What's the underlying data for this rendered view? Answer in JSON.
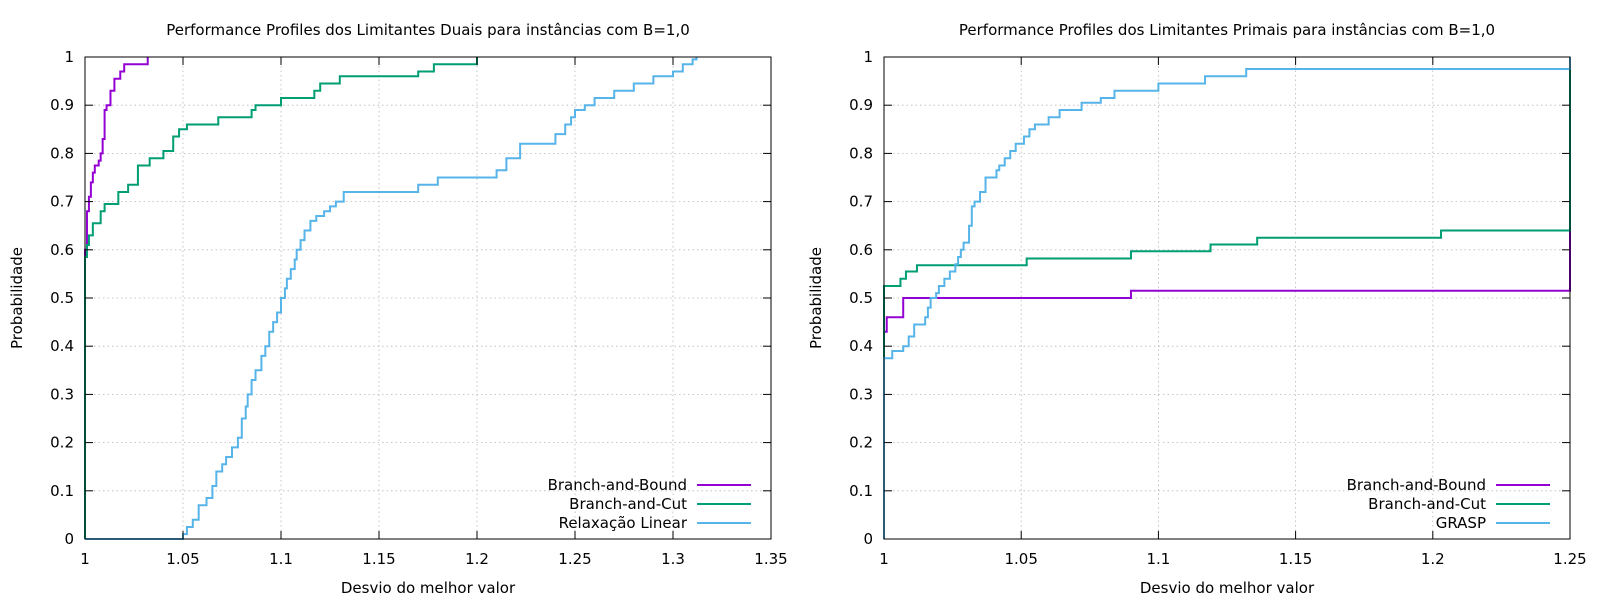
{
  "chart_data": [
    {
      "type": "line",
      "title": "Performance Profiles dos Limitantes Duais para instâncias com B=1,0",
      "xlabel": "Desvio do melhor valor",
      "ylabel": "Probabilidade",
      "xlim": [
        1,
        1.35
      ],
      "ylim": [
        0,
        1
      ],
      "x_ticks": [
        {
          "value": 1,
          "label": "1"
        },
        {
          "value": 1.05,
          "label": "1.05"
        },
        {
          "value": 1.1,
          "label": "1.1"
        },
        {
          "value": 1.15,
          "label": "1.15"
        },
        {
          "value": 1.2,
          "label": "1.2"
        },
        {
          "value": 1.25,
          "label": "1.25"
        },
        {
          "value": 1.3,
          "label": "1.3"
        },
        {
          "value": 1.35,
          "label": "1.35"
        }
      ],
      "y_ticks": [
        {
          "value": 0,
          "label": "0"
        },
        {
          "value": 0.1,
          "label": "0.1"
        },
        {
          "value": 0.2,
          "label": "0.2"
        },
        {
          "value": 0.3,
          "label": "0.3"
        },
        {
          "value": 0.4,
          "label": "0.4"
        },
        {
          "value": 0.5,
          "label": "0.5"
        },
        {
          "value": 0.6,
          "label": "0.6"
        },
        {
          "value": 0.7,
          "label": "0.7"
        },
        {
          "value": 0.8,
          "label": "0.8"
        },
        {
          "value": 0.9,
          "label": "0.9"
        },
        {
          "value": 1,
          "label": "1"
        }
      ],
      "grid": true,
      "legend_position": "bottom-right",
      "series": [
        {
          "name": "Branch-and-Bound",
          "color": "#9400d3",
          "step": true,
          "x": [
            1,
            1.001,
            1.002,
            1.003,
            1.004,
            1.005,
            1.007,
            1.008,
            1.009,
            1.01,
            1.011,
            1.013,
            1.015,
            1.018,
            1.02,
            1.025,
            1.032
          ],
          "y": [
            0.6,
            0.68,
            0.71,
            0.74,
            0.76,
            0.775,
            0.785,
            0.8,
            0.83,
            0.89,
            0.9,
            0.93,
            0.955,
            0.97,
            0.985,
            0.985,
            1
          ]
        },
        {
          "name": "Branch-and-Cut",
          "color": "#009e73",
          "step": true,
          "x": [
            1,
            1.001,
            1.002,
            1.004,
            1.005,
            1.008,
            1.01,
            1.013,
            1.017,
            1.022,
            1.027,
            1.033,
            1.04,
            1.045,
            1.048,
            1.052,
            1.068,
            1.085,
            1.087,
            1.1,
            1.117,
            1.12,
            1.13,
            1.17,
            1.178,
            1.2
          ],
          "y": [
            0.585,
            0.61,
            0.63,
            0.655,
            0.655,
            0.68,
            0.695,
            0.695,
            0.72,
            0.735,
            0.775,
            0.79,
            0.805,
            0.835,
            0.85,
            0.86,
            0.875,
            0.89,
            0.9,
            0.915,
            0.93,
            0.945,
            0.96,
            0.97,
            0.985,
            1
          ]
        },
        {
          "name": "Relaxação Linear",
          "color": "#56b4e9",
          "step": true,
          "x": [
            1,
            1.05,
            1.052,
            1.055,
            1.058,
            1.062,
            1.065,
            1.067,
            1.07,
            1.072,
            1.075,
            1.078,
            1.08,
            1.082,
            1.083,
            1.085,
            1.087,
            1.09,
            1.092,
            1.094,
            1.096,
            1.098,
            1.1,
            1.102,
            1.103,
            1.105,
            1.107,
            1.108,
            1.11,
            1.112,
            1.115,
            1.118,
            1.122,
            1.125,
            1.128,
            1.132,
            1.14,
            1.17,
            1.18,
            1.21,
            1.215,
            1.222,
            1.24,
            1.245,
            1.248,
            1.25,
            1.255,
            1.26,
            1.27,
            1.28,
            1.29,
            1.3,
            1.305,
            1.31,
            1.312
          ],
          "y": [
            0,
            0.01,
            0.025,
            0.04,
            0.07,
            0.085,
            0.11,
            0.14,
            0.155,
            0.17,
            0.19,
            0.21,
            0.25,
            0.275,
            0.3,
            0.33,
            0.35,
            0.38,
            0.4,
            0.43,
            0.45,
            0.47,
            0.5,
            0.52,
            0.54,
            0.56,
            0.58,
            0.6,
            0.62,
            0.64,
            0.66,
            0.67,
            0.68,
            0.69,
            0.7,
            0.72,
            0.72,
            0.735,
            0.75,
            0.765,
            0.79,
            0.82,
            0.84,
            0.86,
            0.875,
            0.89,
            0.9,
            0.915,
            0.93,
            0.945,
            0.96,
            0.97,
            0.985,
            0.995,
            1
          ]
        }
      ]
    },
    {
      "type": "line",
      "title": "Performance Profiles dos Limitantes Primais para instâncias com B=1,0",
      "xlabel": "Desvio do melhor valor",
      "ylabel": "Probabilidade",
      "xlim": [
        1,
        1.25
      ],
      "ylim": [
        0,
        1
      ],
      "x_ticks": [
        {
          "value": 1,
          "label": "1"
        },
        {
          "value": 1.05,
          "label": "1.05"
        },
        {
          "value": 1.1,
          "label": "1.1"
        },
        {
          "value": 1.15,
          "label": "1.15"
        },
        {
          "value": 1.2,
          "label": "1.2"
        },
        {
          "value": 1.25,
          "label": "1.25"
        }
      ],
      "y_ticks": [
        {
          "value": 0,
          "label": "0"
        },
        {
          "value": 0.1,
          "label": "0.1"
        },
        {
          "value": 0.2,
          "label": "0.2"
        },
        {
          "value": 0.3,
          "label": "0.3"
        },
        {
          "value": 0.4,
          "label": "0.4"
        },
        {
          "value": 0.5,
          "label": "0.5"
        },
        {
          "value": 0.6,
          "label": "0.6"
        },
        {
          "value": 0.7,
          "label": "0.7"
        },
        {
          "value": 0.8,
          "label": "0.8"
        },
        {
          "value": 0.9,
          "label": "0.9"
        },
        {
          "value": 1,
          "label": "1"
        }
      ],
      "grid": true,
      "legend_position": "bottom-right",
      "series": [
        {
          "name": "Branch-and-Bound",
          "color": "#9400d3",
          "step": true,
          "x": [
            1,
            1.001,
            1.007,
            1.09,
            1.25
          ],
          "y": [
            0.43,
            0.46,
            0.5,
            0.515,
            1
          ]
        },
        {
          "name": "Branch-and-Cut",
          "color": "#009e73",
          "step": true,
          "x": [
            1,
            1.006,
            1.008,
            1.012,
            1.052,
            1.09,
            1.119,
            1.136,
            1.203,
            1.25
          ],
          "y": [
            0.525,
            0.54,
            0.555,
            0.568,
            0.582,
            0.597,
            0.611,
            0.625,
            0.64,
            1
          ]
        },
        {
          "name": "GRASP",
          "color": "#56b4e9",
          "step": true,
          "x": [
            1,
            1.003,
            1.007,
            1.009,
            1.011,
            1.015,
            1.016,
            1.017,
            1.019,
            1.02,
            1.022,
            1.024,
            1.026,
            1.027,
            1.028,
            1.029,
            1.031,
            1.032,
            1.033,
            1.035,
            1.037,
            1.041,
            1.042,
            1.044,
            1.046,
            1.048,
            1.051,
            1.053,
            1.055,
            1.057,
            1.06,
            1.064,
            1.068,
            1.072,
            1.079,
            1.084,
            1.09,
            1.1,
            1.117,
            1.12,
            1.132,
            1.25
          ],
          "y": [
            0.375,
            0.39,
            0.4,
            0.42,
            0.445,
            0.46,
            0.48,
            0.5,
            0.51,
            0.525,
            0.54,
            0.555,
            0.57,
            0.585,
            0.6,
            0.615,
            0.65,
            0.69,
            0.7,
            0.72,
            0.75,
            0.765,
            0.775,
            0.79,
            0.805,
            0.82,
            0.835,
            0.85,
            0.86,
            0.86,
            0.875,
            0.89,
            0.89,
            0.905,
            0.915,
            0.93,
            0.93,
            0.945,
            0.96,
            0.96,
            0.975,
            1
          ]
        }
      ]
    }
  ]
}
